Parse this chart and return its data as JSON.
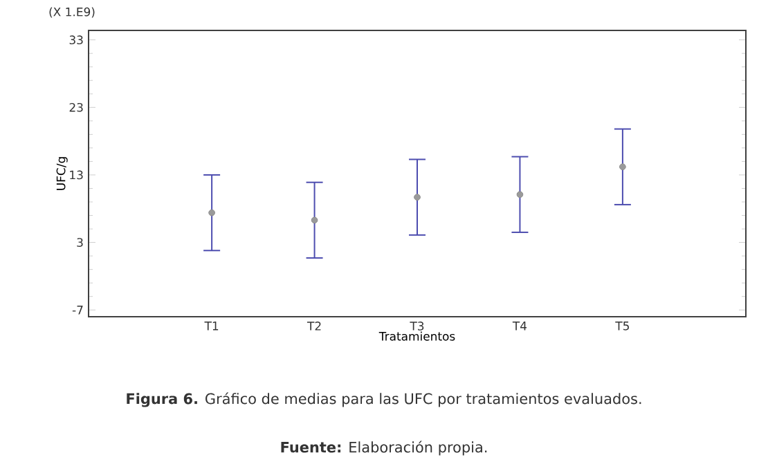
{
  "chart_data": {
    "type": "scatter",
    "xlabel": "Tratamientos",
    "ylabel": "UFC/g",
    "categories": [
      "T1",
      "T2",
      "T3",
      "T4",
      "T5"
    ],
    "series": [
      {
        "color": "#9a9a9a",
        "values": [
          7.4,
          6.3,
          9.7,
          10.1,
          14.2
        ],
        "errors": [
          5.6,
          5.6,
          5.6,
          5.6,
          5.6
        ]
      }
    ],
    "ylim": [
      -8,
      34.4
    ],
    "yticks": [
      -7,
      3,
      13,
      23,
      33
    ],
    "grid": false,
    "marker": "circle",
    "annotations": [
      "(X 1.E9)",
      "**Figura 6.** Gráfico de medias para las UFC por tratamientos evaluados.",
      "**Fuente:** Elaboración propia."
    ]
  }
}
